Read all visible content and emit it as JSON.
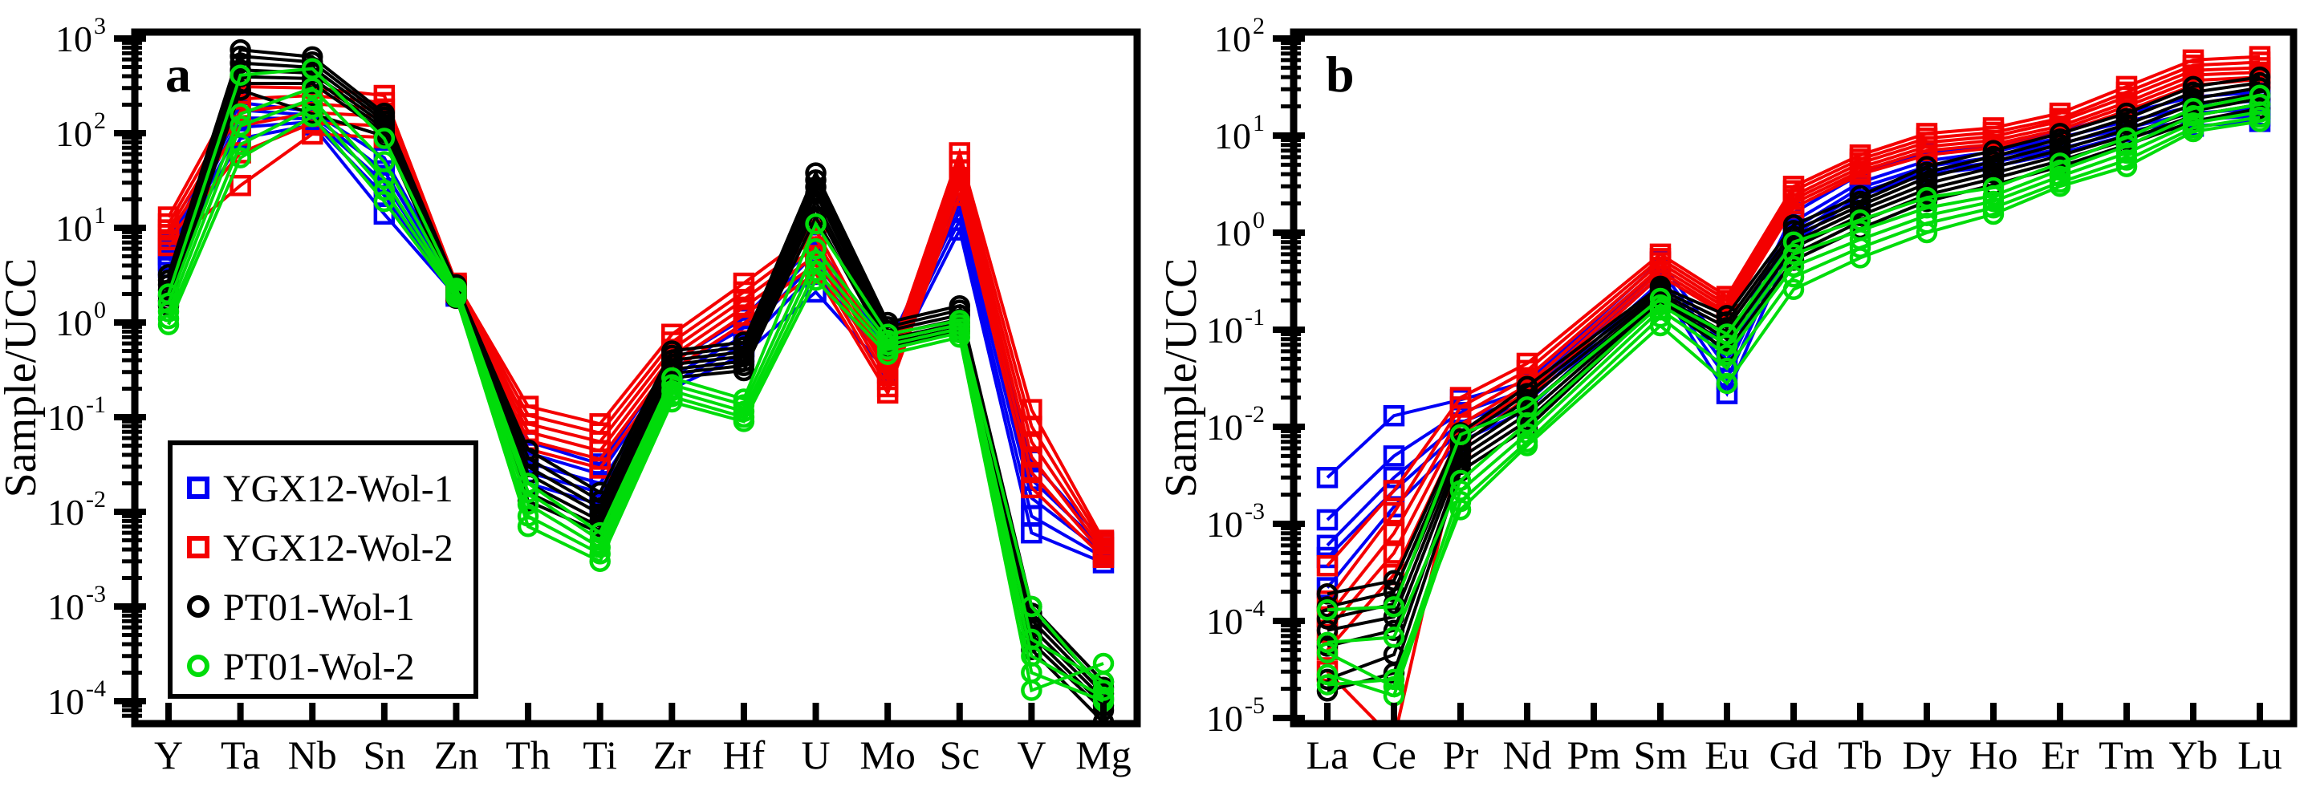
{
  "figure": {
    "panels": [
      {
        "panel_label": "a",
        "ylabel": "Sample/UCC"
      },
      {
        "panel_label": "b",
        "ylabel": "Sample/UCC"
      }
    ]
  },
  "legend": {
    "position": "inside-panel-a-lower-left",
    "items": [
      {
        "label": "YGX12-Wol-1",
        "marker": "square",
        "color": "#0000f5"
      },
      {
        "label": "YGX12-Wol-2",
        "marker": "square",
        "color": "#f40000"
      },
      {
        "label": "PT01-Wol-1",
        "marker": "circle",
        "color": "#000000"
      },
      {
        "label": "PT01-Wol-2",
        "marker": "circle",
        "color": "#00dc0a"
      }
    ]
  },
  "chart_data": [
    {
      "type": "line",
      "panel_label": "a",
      "ylabel": "Sample/UCC",
      "y_scale": "log",
      "y_tick_exponents": [
        3,
        2,
        1,
        0,
        -1,
        -2,
        -3,
        -4
      ],
      "y_range_approx": [
        5e-05,
        1000
      ],
      "grid": "off",
      "categories": [
        "Y",
        "Ta",
        "Nb",
        "Sn",
        "Zn",
        "Th",
        "Ti",
        "Zr",
        "Hf",
        "U",
        "Mo",
        "Sc",
        "V",
        "Mg"
      ],
      "series": [
        {
          "name": "YGX12-Wol-1",
          "color": "#0000f5",
          "marker": "square",
          "lines": [
            [
              7,
              210,
              170,
              55,
              2.4,
              0.055,
              0.032,
              0.38,
              1.1,
              7,
              0.55,
              22,
              0.035,
              0.0048
            ],
            [
              6,
              175,
              155,
              40,
              2.25,
              0.042,
              0.025,
              0.32,
              0.88,
              5.5,
              0.48,
              18,
              0.022,
              0.0042
            ],
            [
              5.2,
              145,
              142,
              30,
              2.1,
              0.033,
              0.02,
              0.27,
              0.72,
              4.4,
              0.42,
              15,
              0.014,
              0.0037
            ],
            [
              4.5,
              115,
              132,
              22,
              2.0,
              0.026,
              0.016,
              0.23,
              0.58,
              3.4,
              0.36,
              12,
              0.009,
              0.0033
            ],
            [
              3.8,
              88,
              122,
              14,
              1.9,
              0.02,
              0.012,
              0.2,
              0.46,
              2.1,
              0.3,
              9.5,
              0.006,
              0.0029
            ]
          ]
        },
        {
          "name": "YGX12-Wol-2",
          "color": "#f40000",
          "marker": "square",
          "lines": [
            [
              13,
              310,
              300,
              250,
              2.6,
              0.13,
              0.085,
              0.75,
              2.6,
              9.5,
              0.38,
              62,
              0.12,
              0.005
            ],
            [
              11,
              230,
              250,
              210,
              2.5,
              0.105,
              0.068,
              0.62,
              2.1,
              7.8,
              0.33,
              50,
              0.08,
              0.0046
            ],
            [
              9.5,
              170,
              205,
              180,
              2.4,
              0.085,
              0.055,
              0.52,
              1.75,
              6.3,
              0.29,
              41,
              0.055,
              0.0042
            ],
            [
              8.5,
              120,
              165,
              150,
              2.3,
              0.07,
              0.044,
              0.44,
              1.45,
              5.1,
              0.25,
              34,
              0.038,
              0.0039
            ],
            [
              7.5,
              62,
              128,
              120,
              2.2,
              0.057,
              0.036,
              0.37,
              1.2,
              4.1,
              0.21,
              28,
              0.026,
              0.0036
            ],
            [
              6.5,
              28,
              98,
              90,
              2.1,
              0.046,
              0.029,
              0.31,
              0.98,
              3.3,
              0.18,
              22,
              0.018,
              0.0033
            ]
          ]
        },
        {
          "name": "PT01-Wol-1",
          "color": "#000000",
          "marker": "circle",
          "lines": [
            [
              3.2,
              760,
              640,
              162,
              2.5,
              0.045,
              0.016,
              0.5,
              0.62,
              38,
              1.0,
              1.5,
              0.001,
              0.00016
            ],
            [
              2.8,
              650,
              565,
              148,
              2.35,
              0.037,
              0.013,
              0.45,
              0.55,
              32,
              0.9,
              1.35,
              0.00085,
              0.00014
            ],
            [
              2.5,
              550,
              495,
              135,
              2.2,
              0.03,
              0.011,
              0.4,
              0.49,
              27,
              0.82,
              1.2,
              0.00072,
              0.00012
            ],
            [
              2.2,
              465,
              432,
              123,
              2.1,
              0.025,
              0.0095,
              0.36,
              0.44,
              23,
              0.74,
              1.08,
              0.0006,
              0.000105
            ],
            [
              1.9,
              395,
              378,
              112,
              2.0,
              0.02,
              0.008,
              0.32,
              0.39,
              19,
              0.67,
              0.98,
              0.0005,
              9e-05
            ],
            [
              1.7,
              335,
              335,
              102,
              1.9,
              0.016,
              0.007,
              0.29,
              0.35,
              16,
              0.6,
              0.88,
              0.00042,
              8e-05
            ],
            [
              1.5,
              285,
              160,
              93,
              1.8,
              0.013,
              0.006,
              0.26,
              0.31,
              13,
              0.54,
              0.8,
              0.00035,
              6e-05
            ]
          ]
        },
        {
          "name": "PT01-Wol-2",
          "color": "#00dc0a",
          "marker": "circle",
          "lines": [
            [
              2.0,
              410,
              480,
              88,
              2.3,
              0.02,
              0.006,
              0.26,
              0.155,
              11,
              0.75,
              1.05,
              0.001,
              0.00013
            ],
            [
              1.6,
              160,
              300,
              50,
              2.15,
              0.016,
              0.005,
              0.22,
              0.135,
              6,
              0.65,
              0.95,
              0.00045,
              0.00016
            ],
            [
              1.3,
              120,
              230,
              33,
              2.05,
              0.012,
              0.0042,
              0.19,
              0.115,
              4.5,
              0.58,
              0.86,
              0.0003,
              0.00011
            ],
            [
              1.1,
              76,
              186,
              25,
              1.95,
              0.009,
              0.0036,
              0.165,
              0.1,
              3.5,
              0.52,
              0.78,
              0.0002,
              0.0001
            ],
            [
              0.95,
              55,
              150,
              19,
              1.85,
              0.007,
              0.003,
              0.145,
              0.09,
              2.8,
              0.46,
              0.7,
              0.00013,
              0.00025
            ]
          ]
        }
      ]
    },
    {
      "type": "line",
      "panel_label": "b",
      "ylabel": "Sample/UCC",
      "y_scale": "log",
      "y_tick_exponents": [
        2,
        1,
        0,
        -1,
        -2,
        -3,
        -4,
        -5
      ],
      "y_range_approx": [
        1e-05,
        100
      ],
      "grid": "off",
      "categories": [
        "La",
        "Ce",
        "Pr",
        "Nd",
        "Pm",
        "Sm",
        "Eu",
        "Gd",
        "Tb",
        "Dy",
        "Ho",
        "Er",
        "Tm",
        "Yb",
        "Lu"
      ],
      "series": [
        {
          "name": "YGX12-Wol-1",
          "color": "#0000f5",
          "marker": "square",
          "lines": [
            [
              0.003,
              0.013,
              0.019,
              0.029,
              null,
              0.5,
              0.06,
              1.6,
              4.0,
              6.6,
              8.0,
              11,
              17,
              25,
              28
            ],
            [
              0.0011,
              0.005,
              0.014,
              0.024,
              null,
              0.42,
              0.048,
              1.3,
              3.3,
              5.5,
              6.8,
              9.5,
              14,
              20,
              23
            ],
            [
              0.0006,
              0.003,
              0.011,
              0.021,
              null,
              0.36,
              0.04,
              1.1,
              2.9,
              4.8,
              6.0,
              8.3,
              12,
              17,
              19
            ],
            [
              0.00045,
              0.0022,
              0.009,
              0.018,
              null,
              0.31,
              0.031,
              0.95,
              2.6,
              4.3,
              5.3,
              7.3,
              11,
              14.5,
              16
            ],
            [
              0.00022,
              0.0015,
              0.007,
              0.015,
              null,
              0.28,
              0.022,
              0.8,
              2.4,
              4.0,
              4.8,
              6.6,
              10,
              12.5,
              14
            ]
          ]
        },
        {
          "name": "YGX12-Wol-2",
          "color": "#f40000",
          "marker": "square",
          "lines": [
            [
              0.00037,
              0.0022,
              0.02,
              0.045,
              null,
              0.6,
              0.22,
              3.0,
              6.3,
              10.5,
              12,
              17,
              32,
              60,
              65
            ],
            [
              0.00016,
              0.0013,
              0.016,
              0.038,
              null,
              0.54,
              0.2,
              2.7,
              5.7,
              9.4,
              10.8,
              15,
              28,
              53,
              57
            ],
            [
              0.00011,
              0.0008,
              0.013,
              0.032,
              null,
              0.49,
              0.18,
              2.4,
              5.2,
              8.5,
              9.8,
              14,
              25,
              47,
              50
            ],
            [
              8e-05,
              0.0005,
              0.0105,
              0.027,
              null,
              0.44,
              0.165,
              2.2,
              4.7,
              7.7,
              8.9,
              12.5,
              22,
              42,
              45
            ],
            [
              5e-05,
              0.0003,
              0.0085,
              0.023,
              null,
              0.4,
              0.15,
              2.0,
              4.3,
              7.0,
              8.1,
              11.5,
              20,
              37,
              40
            ],
            [
              3e-05,
              6e-06,
              0.0064,
              0.02,
              null,
              0.36,
              0.14,
              1.8,
              4.0,
              6.3,
              7.5,
              10.5,
              18,
              33,
              38
            ]
          ]
        },
        {
          "name": "PT01-Wol-1",
          "color": "#000000",
          "marker": "circle",
          "lines": [
            [
              0.00019,
              0.00026,
              0.0087,
              0.026,
              null,
              0.28,
              0.14,
              1.2,
              2.4,
              4.8,
              7.0,
              10.5,
              17,
              32,
              40
            ],
            [
              0.00014,
              0.0002,
              0.0075,
              0.022,
              null,
              0.26,
              0.12,
              1.05,
              2.1,
              4.2,
              6.1,
              9.2,
              15,
              28,
              35
            ],
            [
              0.000105,
              0.00015,
              0.0065,
              0.019,
              null,
              0.24,
              0.105,
              0.92,
              1.9,
              3.7,
              5.4,
              8.1,
              13,
              24,
              31
            ],
            [
              8e-05,
              0.00011,
              0.0056,
              0.016,
              null,
              0.225,
              0.09,
              0.8,
              1.7,
              3.2,
              4.7,
              7.1,
              11.5,
              21,
              27
            ],
            [
              5.5e-05,
              8e-05,
              0.0048,
              0.0135,
              null,
              0.21,
              0.08,
              0.7,
              1.5,
              2.8,
              4.1,
              6.2,
              10,
              18,
              24
            ],
            [
              2.5e-05,
              4.5e-05,
              0.0041,
              0.0115,
              null,
              0.2,
              0.07,
              0.6,
              1.3,
              2.45,
              3.6,
              5.5,
              9.0,
              16,
              21
            ],
            [
              1.9e-05,
              2.9e-05,
              0.0035,
              0.0097,
              null,
              0.19,
              0.06,
              0.52,
              1.1,
              2.1,
              3.1,
              4.8,
              8.0,
              14,
              19
            ]
          ]
        },
        {
          "name": "PT01-Wol-2",
          "color": "#00dc0a",
          "marker": "circle",
          "lines": [
            [
              0.00013,
              0.00014,
              0.0083,
              0.016,
              null,
              0.21,
              0.09,
              0.8,
              1.35,
              2.3,
              2.9,
              5.2,
              9.5,
              19,
              26
            ],
            [
              6e-05,
              6.8e-05,
              0.0028,
              0.011,
              null,
              0.18,
              0.07,
              0.6,
              1.05,
              1.8,
              2.4,
              4.4,
              7.8,
              16,
              21
            ],
            [
              4.7e-05,
              2.1e-05,
              0.0022,
              0.0085,
              null,
              0.16,
              0.055,
              0.45,
              0.85,
              1.5,
              2.1,
              3.8,
              6.6,
              13.5,
              17.5
            ],
            [
              2.8e-05,
              1.7e-05,
              0.0017,
              0.007,
              null,
              0.135,
              0.04,
              0.35,
              0.7,
              1.25,
              1.8,
              3.3,
              5.6,
              12,
              15.5
            ],
            [
              2.2e-05,
              2.5e-05,
              0.0014,
              0.0064,
              null,
              0.11,
              0.028,
              0.26,
              0.55,
              1.0,
              1.55,
              3.0,
              4.8,
              11,
              14
            ]
          ]
        }
      ]
    }
  ]
}
